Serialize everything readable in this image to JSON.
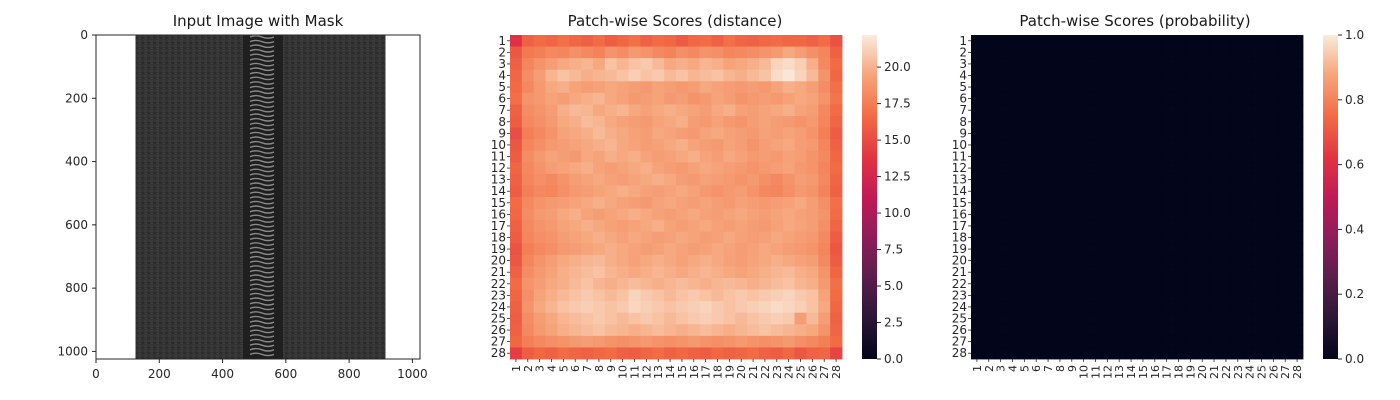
{
  "figure": {
    "background": "#ffffff"
  },
  "panels": [
    {
      "title": "Input Image with Mask",
      "x_ticks": [
        "0",
        "200",
        "400",
        "600",
        "800",
        "1000"
      ],
      "y_ticks": [
        "0",
        "200",
        "400",
        "600",
        "800",
        "1000"
      ],
      "image_size": [
        1024,
        1024
      ],
      "image_content": "dark-grey-fabric-zipper"
    },
    {
      "title": "Patch-wise Scores (distance)",
      "row_labels": [
        "1",
        "2",
        "3",
        "4",
        "5",
        "6",
        "7",
        "8",
        "9",
        "10",
        "11",
        "12",
        "13",
        "14",
        "15",
        "16",
        "17",
        "18",
        "19",
        "20",
        "21",
        "22",
        "23",
        "24",
        "25",
        "26",
        "27",
        "28"
      ],
      "col_labels": [
        "1",
        "2",
        "3",
        "4",
        "5",
        "6",
        "7",
        "8",
        "9",
        "10",
        "11",
        "12",
        "13",
        "14",
        "15",
        "16",
        "17",
        "18",
        "19",
        "20",
        "21",
        "22",
        "23",
        "24",
        "25",
        "26",
        "27",
        "28"
      ],
      "colorbar_ticks": [
        "0.0",
        "2.5",
        "5.0",
        "7.5",
        "10.0",
        "12.5",
        "15.0",
        "17.5",
        "20.0"
      ],
      "colormap": "rocket",
      "vmin": 0,
      "vmax": 22.2
    },
    {
      "title": "Patch-wise Scores (probability)",
      "row_labels": [
        "1",
        "2",
        "3",
        "4",
        "5",
        "6",
        "7",
        "8",
        "9",
        "10",
        "11",
        "12",
        "13",
        "14",
        "15",
        "16",
        "17",
        "18",
        "19",
        "20",
        "21",
        "22",
        "23",
        "24",
        "25",
        "26",
        "27",
        "28"
      ],
      "col_labels": [
        "1",
        "2",
        "3",
        "4",
        "5",
        "6",
        "7",
        "8",
        "9",
        "10",
        "11",
        "12",
        "13",
        "14",
        "15",
        "16",
        "17",
        "18",
        "19",
        "20",
        "21",
        "22",
        "23",
        "24",
        "25",
        "26",
        "27",
        "28"
      ],
      "colorbar_ticks": [
        "0.0",
        "0.2",
        "0.4",
        "0.6",
        "0.8",
        "1.0"
      ],
      "colormap": "rocket",
      "vmin": 0,
      "vmax": 1
    }
  ],
  "chart_data": [
    {
      "type": "image",
      "title": "Input Image with Mask",
      "xlim": [
        0,
        1024
      ],
      "ylim": [
        1024,
        0
      ],
      "x_ticks": [
        0,
        200,
        400,
        600,
        800,
        1000
      ],
      "y_ticks": [
        0,
        200,
        400,
        600,
        800,
        1000
      ],
      "fabric_extent_x": [
        125,
        915
      ],
      "zipper_teeth_x": [
        465,
        580
      ]
    },
    {
      "type": "heatmap",
      "title": "Patch-wise Scores (distance)",
      "rows": 28,
      "cols": 28,
      "vmin": 0,
      "vmax": 22.2,
      "row_labels": [
        1,
        2,
        3,
        4,
        5,
        6,
        7,
        8,
        9,
        10,
        11,
        12,
        13,
        14,
        15,
        16,
        17,
        18,
        19,
        20,
        21,
        22,
        23,
        24,
        25,
        26,
        27,
        28
      ],
      "col_labels": [
        1,
        2,
        3,
        4,
        5,
        6,
        7,
        8,
        9,
        10,
        11,
        12,
        13,
        14,
        15,
        16,
        17,
        18,
        19,
        20,
        21,
        22,
        23,
        24,
        25,
        26,
        27,
        28
      ],
      "values": [
        [
          13.6,
          16.1,
          16.6,
          16.3,
          16.8,
          16.4,
          16.1,
          16.6,
          15.9,
          16.3,
          16.8,
          16.1,
          16.6,
          16.4,
          15.8,
          16.4,
          16.6,
          16.1,
          16.8,
          16.3,
          16.1,
          16.4,
          16.6,
          16.3,
          16.4,
          16.1,
          16.6,
          15.3
        ],
        [
          15.6,
          17.3,
          17.6,
          18.1,
          17.9,
          18.4,
          18.1,
          17.8,
          18.6,
          18.3,
          18.9,
          18.6,
          18.1,
          17.8,
          18.4,
          18.1,
          18.6,
          18.4,
          17.9,
          18.1,
          18.3,
          18.6,
          18.9,
          19.6,
          19.1,
          18.4,
          17.9,
          16.1
        ],
        [
          16.1,
          17.9,
          18.6,
          19.1,
          19.6,
          19.9,
          20.1,
          19.6,
          20.6,
          20.1,
          20.6,
          20.9,
          20.3,
          19.6,
          19.9,
          19.6,
          20.1,
          19.9,
          19.4,
          19.6,
          19.9,
          20.3,
          21.3,
          21.6,
          21.1,
          19.9,
          18.1,
          16.6
        ],
        [
          16.4,
          18.3,
          19.1,
          20.1,
          20.6,
          20.3,
          19.9,
          20.1,
          20.3,
          20.6,
          21.1,
          20.6,
          20.9,
          20.3,
          20.6,
          20.1,
          20.4,
          20.6,
          20.1,
          19.9,
          20.3,
          20.6,
          21.6,
          22.0,
          21.3,
          20.3,
          18.6,
          16.4
        ],
        [
          16.6,
          18.1,
          18.9,
          19.6,
          19.9,
          19.4,
          19.1,
          19.3,
          19.6,
          19.4,
          19.1,
          18.9,
          19.4,
          19.1,
          18.9,
          19.1,
          19.6,
          19.3,
          19.1,
          18.9,
          19.1,
          18.9,
          19.4,
          19.9,
          19.6,
          19.1,
          18.3,
          16.8
        ],
        [
          16.8,
          18.6,
          18.9,
          19.4,
          19.1,
          19.6,
          19.9,
          20.1,
          19.6,
          19.3,
          18.9,
          19.1,
          19.4,
          18.9,
          19.1,
          18.6,
          18.9,
          19.4,
          19.1,
          18.6,
          18.9,
          19.1,
          18.9,
          19.3,
          19.6,
          19.4,
          18.6,
          17.1
        ],
        [
          16.1,
          18.3,
          18.6,
          19.1,
          19.9,
          20.3,
          20.1,
          19.6,
          19.9,
          20.1,
          19.6,
          19.3,
          19.6,
          19.9,
          19.6,
          19.4,
          19.1,
          19.6,
          19.9,
          19.3,
          19.1,
          19.4,
          19.6,
          19.9,
          19.4,
          19.1,
          18.1,
          16.6
        ],
        [
          15.9,
          18.1,
          18.4,
          18.9,
          19.6,
          19.9,
          20.4,
          20.1,
          19.6,
          19.3,
          19.1,
          18.9,
          19.4,
          19.6,
          19.9,
          19.1,
          18.9,
          19.3,
          18.9,
          18.6,
          19.1,
          19.4,
          19.1,
          18.9,
          18.6,
          18.9,
          17.9,
          16.3
        ],
        [
          15.1,
          17.6,
          18.1,
          18.6,
          19.4,
          19.6,
          19.9,
          20.3,
          19.9,
          19.6,
          19.3,
          19.1,
          19.6,
          19.4,
          19.1,
          18.9,
          19.4,
          19.6,
          19.3,
          19.1,
          18.9,
          19.3,
          19.1,
          19.4,
          19.1,
          18.6,
          17.6,
          15.9
        ],
        [
          15.6,
          17.9,
          18.4,
          18.9,
          19.1,
          19.4,
          19.6,
          19.9,
          20.1,
          19.6,
          19.4,
          19.1,
          19.3,
          19.6,
          19.9,
          19.4,
          19.1,
          18.9,
          19.4,
          19.1,
          18.6,
          19.1,
          19.4,
          19.6,
          19.1,
          18.9,
          17.9,
          16.1
        ],
        [
          15.9,
          18.3,
          18.9,
          19.4,
          19.1,
          18.9,
          19.6,
          19.4,
          19.9,
          19.6,
          19.9,
          19.4,
          19.1,
          19.3,
          19.6,
          19.9,
          19.4,
          19.1,
          19.6,
          19.3,
          18.9,
          19.1,
          18.9,
          19.3,
          19.1,
          18.6,
          18.1,
          16.4
        ],
        [
          16.3,
          18.1,
          18.6,
          19.1,
          19.4,
          19.6,
          19.9,
          19.4,
          19.1,
          19.4,
          19.6,
          19.9,
          19.4,
          19.1,
          18.9,
          19.3,
          19.6,
          19.4,
          19.1,
          18.9,
          18.6,
          18.9,
          19.1,
          19.4,
          18.9,
          18.6,
          17.9,
          16.6
        ],
        [
          16.1,
          17.9,
          18.4,
          18.1,
          18.6,
          19.1,
          19.4,
          19.6,
          19.3,
          19.1,
          19.4,
          19.6,
          19.9,
          19.6,
          19.1,
          18.9,
          19.3,
          19.1,
          18.9,
          18.6,
          18.9,
          18.4,
          18.1,
          18.6,
          19.1,
          18.9,
          18.1,
          16.3
        ],
        [
          15.9,
          17.6,
          18.1,
          17.9,
          18.4,
          18.9,
          19.1,
          19.4,
          19.6,
          19.9,
          19.6,
          19.3,
          19.1,
          19.4,
          19.6,
          19.3,
          18.9,
          18.6,
          18.9,
          19.1,
          18.6,
          18.1,
          17.9,
          18.4,
          18.9,
          18.6,
          17.8,
          16.1
        ],
        [
          16.6,
          18.1,
          18.6,
          18.9,
          19.1,
          19.4,
          19.6,
          19.9,
          19.6,
          19.3,
          19.1,
          18.9,
          19.4,
          19.6,
          19.3,
          19.1,
          19.4,
          19.1,
          18.9,
          19.3,
          19.1,
          18.9,
          19.1,
          19.3,
          19.6,
          19.1,
          18.4,
          16.8
        ],
        [
          16.4,
          18.3,
          18.9,
          19.1,
          19.6,
          19.9,
          19.4,
          19.1,
          19.4,
          19.6,
          19.9,
          19.6,
          19.3,
          19.1,
          19.4,
          19.6,
          19.3,
          19.1,
          19.4,
          19.6,
          19.3,
          19.1,
          19.4,
          19.6,
          19.3,
          19.1,
          18.6,
          16.6
        ],
        [
          16.1,
          18.1,
          18.6,
          18.9,
          19.4,
          19.6,
          19.9,
          19.6,
          19.3,
          19.1,
          19.4,
          19.6,
          19.9,
          19.4,
          19.1,
          19.4,
          19.6,
          19.3,
          19.1,
          19.4,
          19.1,
          18.9,
          19.3,
          19.6,
          19.4,
          19.1,
          18.4,
          16.3
        ],
        [
          15.9,
          17.9,
          18.4,
          18.6,
          19.1,
          19.4,
          19.6,
          19.9,
          19.6,
          19.3,
          19.6,
          19.4,
          19.1,
          19.3,
          19.6,
          19.4,
          19.1,
          19.3,
          19.6,
          19.3,
          19.1,
          19.3,
          19.6,
          19.4,
          19.1,
          18.9,
          18.1,
          15.9
        ],
        [
          15.4,
          17.6,
          18.1,
          18.4,
          18.9,
          19.1,
          19.4,
          19.6,
          19.9,
          19.6,
          19.4,
          19.1,
          19.3,
          19.6,
          19.4,
          19.1,
          19.3,
          19.6,
          19.4,
          19.1,
          19.3,
          19.6,
          19.4,
          19.1,
          18.9,
          18.6,
          17.9,
          15.6
        ],
        [
          15.6,
          17.9,
          18.6,
          19.1,
          19.6,
          19.9,
          20.1,
          20.3,
          19.9,
          19.6,
          19.3,
          19.6,
          19.9,
          19.6,
          19.3,
          19.6,
          19.9,
          19.6,
          19.3,
          19.1,
          19.4,
          19.6,
          19.9,
          19.6,
          19.3,
          19.1,
          18.1,
          15.9
        ],
        [
          16.1,
          18.3,
          18.9,
          19.4,
          19.9,
          20.1,
          20.4,
          20.6,
          20.1,
          19.9,
          19.6,
          19.9,
          20.1,
          19.9,
          19.6,
          19.9,
          20.1,
          19.9,
          19.6,
          19.4,
          19.6,
          19.9,
          20.1,
          20.3,
          19.9,
          19.6,
          18.6,
          16.3
        ],
        [
          16.6,
          18.6,
          19.1,
          19.6,
          19.9,
          20.3,
          20.6,
          20.1,
          19.9,
          20.1,
          20.4,
          20.1,
          19.9,
          20.1,
          20.4,
          20.1,
          19.9,
          20.1,
          20.3,
          20.1,
          19.9,
          20.1,
          20.4,
          20.6,
          20.1,
          19.9,
          18.9,
          16.8
        ],
        [
          16.3,
          18.4,
          19.4,
          19.9,
          20.3,
          20.6,
          20.9,
          20.6,
          20.3,
          20.6,
          21.3,
          20.9,
          20.6,
          20.3,
          20.6,
          20.9,
          20.6,
          20.3,
          20.6,
          20.9,
          20.6,
          20.9,
          21.1,
          21.3,
          20.9,
          20.6,
          19.4,
          16.6
        ],
        [
          16.1,
          18.6,
          19.6,
          20.1,
          20.6,
          20.9,
          21.1,
          20.9,
          20.6,
          20.9,
          21.4,
          21.1,
          20.9,
          20.6,
          20.9,
          21.1,
          21.3,
          20.9,
          20.6,
          20.9,
          21.1,
          21.3,
          21.6,
          21.4,
          21.1,
          20.6,
          19.6,
          16.4
        ],
        [
          15.9,
          18.3,
          19.1,
          19.6,
          20.1,
          20.4,
          20.6,
          20.9,
          20.6,
          20.3,
          20.6,
          20.9,
          20.6,
          20.3,
          20.6,
          20.9,
          21.1,
          20.9,
          20.6,
          20.3,
          20.6,
          20.9,
          21.1,
          20.9,
          19.1,
          20.3,
          19.1,
          16.1
        ],
        [
          16.1,
          18.1,
          18.9,
          19.4,
          19.9,
          20.1,
          20.4,
          20.6,
          20.3,
          20.1,
          19.9,
          20.1,
          20.4,
          20.1,
          19.9,
          20.1,
          20.4,
          20.1,
          19.9,
          20.1,
          20.4,
          20.6,
          20.4,
          20.1,
          19.9,
          19.6,
          18.6,
          16.3
        ],
        [
          16.4,
          17.6,
          18.1,
          18.4,
          18.6,
          18.9,
          19.1,
          18.9,
          18.6,
          18.4,
          18.6,
          18.9,
          18.6,
          18.4,
          18.6,
          18.9,
          18.6,
          18.4,
          18.6,
          18.9,
          18.6,
          18.4,
          18.6,
          18.9,
          18.4,
          18.1,
          17.6,
          16.6
        ],
        [
          14.3,
          15.9,
          16.4,
          16.1,
          16.6,
          16.3,
          16.1,
          16.4,
          16.6,
          16.1,
          15.9,
          16.3,
          16.6,
          16.1,
          16.4,
          16.1,
          15.9,
          16.4,
          16.1,
          16.3,
          16.6,
          16.1,
          15.9,
          16.4,
          15.6,
          16.1,
          16.3,
          14.6
        ]
      ]
    },
    {
      "type": "heatmap",
      "title": "Patch-wise Scores (probability)",
      "rows": 28,
      "cols": 28,
      "vmin": 0,
      "vmax": 1,
      "fill_value": 0.0,
      "row_labels": [
        1,
        2,
        3,
        4,
        5,
        6,
        7,
        8,
        9,
        10,
        11,
        12,
        13,
        14,
        15,
        16,
        17,
        18,
        19,
        20,
        21,
        22,
        23,
        24,
        25,
        26,
        27,
        28
      ],
      "col_labels": [
        1,
        2,
        3,
        4,
        5,
        6,
        7,
        8,
        9,
        10,
        11,
        12,
        13,
        14,
        15,
        16,
        17,
        18,
        19,
        20,
        21,
        22,
        23,
        24,
        25,
        26,
        27,
        28
      ]
    }
  ]
}
